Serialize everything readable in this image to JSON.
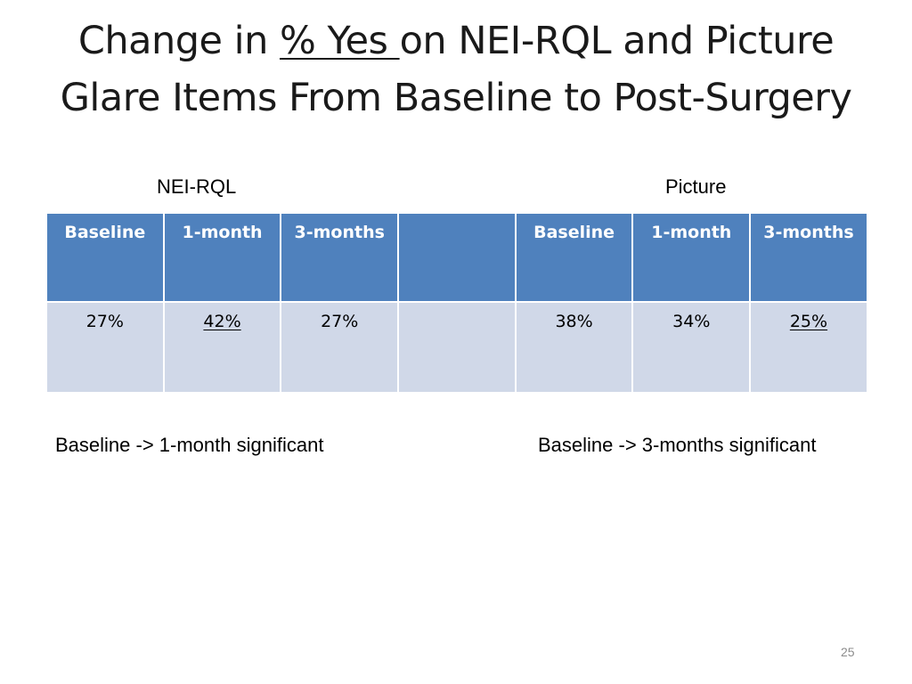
{
  "slide": {
    "title_part1": "Change in ",
    "title_underlined": "% Yes ",
    "title_part2": "on NEI-RQL and Picture",
    "title_line2": "Glare Items From Baseline to Post-Surgery",
    "group_labels": {
      "left": "NEI-RQL",
      "right": "Picture"
    },
    "table": {
      "headers": [
        "Baseline",
        "1-month",
        "3-months",
        "",
        "Baseline",
        "1-month",
        "3-months"
      ],
      "row": [
        {
          "value": "27%",
          "underlined": false
        },
        {
          "value": "42%",
          "underlined": true
        },
        {
          "value": "27%",
          "underlined": false
        },
        {
          "value": "",
          "underlined": false
        },
        {
          "value": "38%",
          "underlined": false
        },
        {
          "value": "34%",
          "underlined": false
        },
        {
          "value": "25%",
          "underlined": true
        }
      ],
      "colors": {
        "header_bg": "#4f81bd",
        "row_bg": "#d0d8e8",
        "header_text": "#ffffff"
      }
    },
    "footnotes": {
      "left": "Baseline -> 1-month significant",
      "right": "Baseline -> 3-months significant"
    },
    "slide_number": "25"
  }
}
